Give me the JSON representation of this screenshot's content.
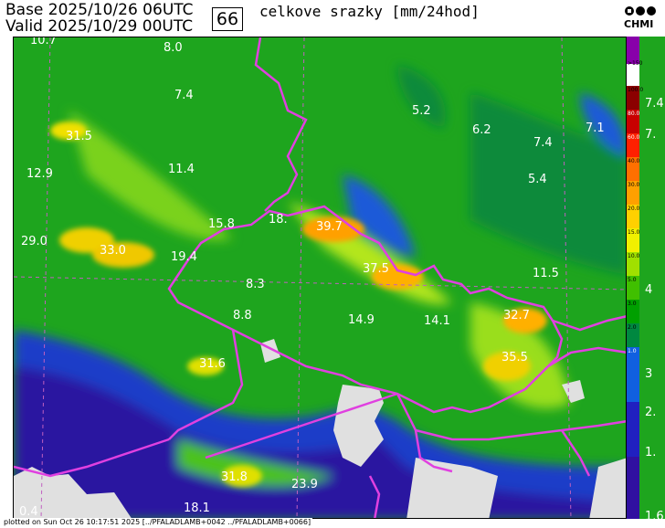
{
  "header": {
    "base_line": "Base 2025/10/26 06UTC",
    "valid_line": "Valid 2025/10/29 00UTC",
    "step": "66",
    "title": "celkove srazky [mm/24hod]",
    "logo_text": "CHMI"
  },
  "colors": {
    "border": "#e040e0",
    "grid": "#c060c0",
    "no_precip": "#e0e0e0"
  },
  "legend": {
    "labels": [
      ">150",
      "100.0",
      "80.0",
      "60.0",
      "40.0",
      "30.0",
      "20.0",
      "15.0",
      "10.0",
      "5.0",
      "3.0",
      "2.0",
      "1.0"
    ],
    "colors": [
      "#8800aa",
      "#ffffff",
      "#8b0000",
      "#c80000",
      "#ff2000",
      "#ff7000",
      "#ffa000",
      "#ffd000",
      "#f0f000",
      "#a0e000",
      "#40c000",
      "#00a000",
      "#008840",
      "#1060e0",
      "#2020c0",
      "#3010a0"
    ],
    "side_values": [
      "7.4",
      "7.",
      "4",
      "3",
      "2.",
      "1.",
      "1.6"
    ]
  },
  "values": [
    "10.7",
    "8.0",
    "7.4",
    "5.2",
    "6.2",
    "7.4",
    "7.1",
    "31.5",
    "11.4",
    "5.4",
    "12.9",
    "15.8",
    "18.",
    "39.7",
    "29.0",
    "33.0",
    "19.4",
    "37.5",
    "11.5",
    "8.3",
    "8.8",
    "14.9",
    "14.1",
    "32.7",
    "35.5",
    "31.6",
    "31.8",
    "23.9",
    "18.1",
    "0.4"
  ],
  "footer": "plotted on Sun Oct 26 10:17:51 2025 [../PFALADLAMB+0042 ../PFALADLAMB+0066]"
}
